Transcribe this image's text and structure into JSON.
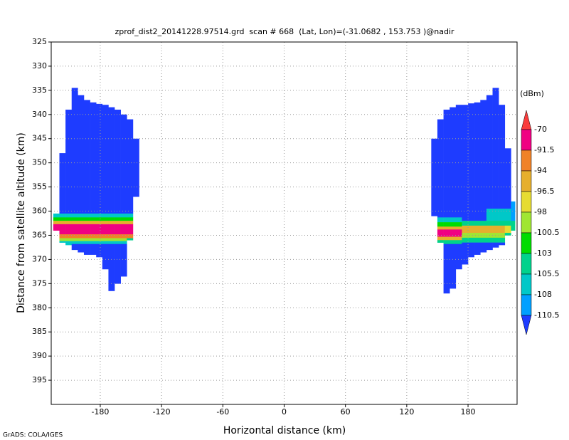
{
  "chart_data": {
    "type": "heatmap",
    "title": "zprof_dist2_20141228.97514.grd  scan # 668  (Lat, Lon)=(-31.0682 , 153.753 )@nadir",
    "x_label": "Horizontal distance (km)",
    "y_label": "Distance from satellite altitude (km)",
    "footer": "GrADS: COLA/IGES",
    "xlim": [
      -228,
      228
    ],
    "xticks": [
      -180,
      -120,
      -60,
      0,
      60,
      120,
      180
    ],
    "ylim": [
      325,
      400
    ],
    "y_reversed": true,
    "yticks": [
      325,
      330,
      335,
      340,
      345,
      350,
      355,
      360,
      365,
      370,
      375,
      380,
      385,
      390,
      395
    ],
    "grid": true,
    "colorbar": {
      "label": "(dBm)",
      "levels": [
        -70,
        -91.5,
        -94,
        -96.5,
        -98,
        -100.5,
        -103,
        -105.5,
        -108,
        -110.5
      ],
      "colors": [
        "#fa3c3c",
        "#f00082",
        "#f08228",
        "#e6af2d",
        "#e6dc32",
        "#a0e632",
        "#00dc00",
        "#00d28c",
        "#00c8c8",
        "#00a0ff",
        "#1e3cff"
      ]
    },
    "columns": [
      {
        "x": [
          -226,
          -220
        ],
        "cells": [
          [
            360.5,
            361.3,
            -107
          ],
          [
            361.3,
            362,
            -102
          ],
          [
            362,
            362.7,
            -95
          ],
          [
            362.7,
            364,
            -80
          ]
        ]
      },
      {
        "x": [
          -220,
          -214
        ],
        "cells": [
          [
            348,
            360.5,
            -112
          ],
          [
            360.5,
            361.3,
            -107
          ],
          [
            361.3,
            362,
            -102
          ],
          [
            362,
            362.7,
            -95
          ],
          [
            362.7,
            364.8,
            -80
          ],
          [
            364.8,
            365.6,
            -93
          ],
          [
            365.6,
            366.2,
            -99
          ],
          [
            366.2,
            366.5,
            -107
          ]
        ]
      },
      {
        "x": [
          -214,
          -208
        ],
        "cells": [
          [
            339,
            360.5,
            -112
          ],
          [
            360.5,
            361.3,
            -107
          ],
          [
            361.3,
            362,
            -102
          ],
          [
            362,
            362.7,
            -95
          ],
          [
            362.7,
            364.8,
            -80
          ],
          [
            364.8,
            365.6,
            -93
          ],
          [
            365.6,
            366.2,
            -99
          ],
          [
            366.2,
            367,
            -107
          ]
        ]
      },
      {
        "x": [
          -208,
          -202
        ],
        "cells": [
          [
            334.5,
            360.5,
            -112
          ],
          [
            360.5,
            361.3,
            -107
          ],
          [
            361.3,
            362,
            -102
          ],
          [
            362,
            362.7,
            -95
          ],
          [
            362.7,
            364.8,
            -80
          ],
          [
            364.8,
            365.6,
            -93
          ],
          [
            365.6,
            366.2,
            -99
          ],
          [
            366.2,
            366.8,
            -107
          ],
          [
            366.8,
            368,
            -112
          ]
        ]
      },
      {
        "x": [
          -202,
          -196
        ],
        "cells": [
          [
            336,
            360.5,
            -112
          ],
          [
            360.5,
            361.3,
            -107
          ],
          [
            361.3,
            362,
            -102
          ],
          [
            362,
            362.7,
            -95
          ],
          [
            362.7,
            364.8,
            -80
          ],
          [
            364.8,
            365.6,
            -93
          ],
          [
            365.6,
            366.2,
            -99
          ],
          [
            366.2,
            366.8,
            -107
          ],
          [
            366.8,
            368.5,
            -112
          ]
        ]
      },
      {
        "x": [
          -196,
          -190
        ],
        "cells": [
          [
            337,
            360.5,
            -112
          ],
          [
            360.5,
            361.3,
            -107
          ],
          [
            361.3,
            362,
            -102
          ],
          [
            362,
            362.7,
            -95
          ],
          [
            362.7,
            364.8,
            -80
          ],
          [
            364.8,
            365.6,
            -93
          ],
          [
            365.6,
            366.2,
            -99
          ],
          [
            366.2,
            366.8,
            -107
          ],
          [
            366.8,
            369,
            -112
          ]
        ]
      },
      {
        "x": [
          -190,
          -184
        ],
        "cells": [
          [
            337.5,
            360.5,
            -112
          ],
          [
            360.5,
            361.3,
            -107
          ],
          [
            361.3,
            362,
            -102
          ],
          [
            362,
            362.7,
            -95
          ],
          [
            362.7,
            364.8,
            -80
          ],
          [
            364.8,
            365.6,
            -93
          ],
          [
            365.6,
            366.2,
            -99
          ],
          [
            366.2,
            366.8,
            -107
          ],
          [
            366.8,
            369,
            -112
          ]
        ]
      },
      {
        "x": [
          -184,
          -178
        ],
        "cells": [
          [
            337.8,
            360.5,
            -112
          ],
          [
            360.5,
            361.3,
            -107
          ],
          [
            361.3,
            362,
            -102
          ],
          [
            362,
            362.7,
            -95
          ],
          [
            362.7,
            364.8,
            -80
          ],
          [
            364.8,
            365.6,
            -93
          ],
          [
            365.6,
            366.2,
            -99
          ],
          [
            366.2,
            366.8,
            -107
          ],
          [
            366.8,
            369.5,
            -112
          ]
        ]
      },
      {
        "x": [
          -178,
          -172
        ],
        "cells": [
          [
            338,
            360.5,
            -112
          ],
          [
            360.5,
            361.3,
            -107
          ],
          [
            361.3,
            362,
            -102
          ],
          [
            362,
            362.7,
            -95
          ],
          [
            362.7,
            364.8,
            -80
          ],
          [
            364.8,
            365.6,
            -93
          ],
          [
            365.6,
            366.2,
            -99
          ],
          [
            366.2,
            366.8,
            -107
          ],
          [
            366.8,
            372,
            -112
          ]
        ]
      },
      {
        "x": [
          -172,
          -166
        ],
        "cells": [
          [
            338.5,
            360.5,
            -112
          ],
          [
            360.5,
            361.3,
            -107
          ],
          [
            361.3,
            362,
            -102
          ],
          [
            362,
            362.7,
            -95
          ],
          [
            362.7,
            364.8,
            -80
          ],
          [
            364.8,
            365.6,
            -93
          ],
          [
            365.6,
            366.2,
            -99
          ],
          [
            366.2,
            366.8,
            -107
          ],
          [
            366.8,
            376.5,
            -112
          ]
        ]
      },
      {
        "x": [
          -166,
          -160
        ],
        "cells": [
          [
            339,
            360.5,
            -112
          ],
          [
            360.5,
            361.3,
            -107
          ],
          [
            361.3,
            362,
            -102
          ],
          [
            362,
            362.7,
            -95
          ],
          [
            362.7,
            364.8,
            -80
          ],
          [
            364.8,
            365.6,
            -93
          ],
          [
            365.6,
            366.2,
            -99
          ],
          [
            366.2,
            366.8,
            -107
          ],
          [
            366.8,
            375,
            -112
          ]
        ]
      },
      {
        "x": [
          -160,
          -154
        ],
        "cells": [
          [
            340,
            360.5,
            -112
          ],
          [
            360.5,
            361.3,
            -107
          ],
          [
            361.3,
            362,
            -102
          ],
          [
            362,
            362.7,
            -95
          ],
          [
            362.7,
            364.8,
            -80
          ],
          [
            364.8,
            365.6,
            -93
          ],
          [
            365.6,
            366.2,
            -99
          ],
          [
            366.2,
            366.8,
            -107
          ],
          [
            366.8,
            373.5,
            -112
          ]
        ]
      },
      {
        "x": [
          -154,
          -148
        ],
        "cells": [
          [
            341,
            360.5,
            -112
          ],
          [
            360.5,
            361.3,
            -107
          ],
          [
            361.3,
            362,
            -102
          ],
          [
            362,
            362.7,
            -95
          ],
          [
            362.7,
            364.8,
            -85
          ],
          [
            364.8,
            365.6,
            -93
          ],
          [
            365.6,
            366,
            -104
          ]
        ]
      },
      {
        "x": [
          -148,
          -142
        ],
        "cells": [
          [
            345,
            357,
            -112
          ]
        ]
      },
      {
        "x": [
          144,
          150
        ],
        "cells": [
          [
            345,
            361,
            -112
          ]
        ]
      },
      {
        "x": [
          150,
          156
        ],
        "cells": [
          [
            341,
            361.3,
            -112
          ],
          [
            361.3,
            362.3,
            -106
          ],
          [
            362.3,
            363.2,
            -101
          ],
          [
            363.2,
            363.8,
            -96
          ],
          [
            363.8,
            365.3,
            -80
          ],
          [
            365.3,
            366,
            -94
          ],
          [
            366,
            366.5,
            -104
          ]
        ]
      },
      {
        "x": [
          156,
          162
        ],
        "cells": [
          [
            339,
            361.3,
            -112
          ],
          [
            361.3,
            362.3,
            -106
          ],
          [
            362.3,
            363.2,
            -101
          ],
          [
            363.2,
            363.8,
            -96
          ],
          [
            363.8,
            365.3,
            -80
          ],
          [
            365.3,
            366,
            -94
          ],
          [
            366,
            366.8,
            -104
          ],
          [
            366.8,
            377,
            -112
          ]
        ]
      },
      {
        "x": [
          162,
          168
        ],
        "cells": [
          [
            338.5,
            361.3,
            -112
          ],
          [
            361.3,
            362.3,
            -106
          ],
          [
            362.3,
            363.2,
            -101
          ],
          [
            363.2,
            363.8,
            -96
          ],
          [
            363.8,
            365.3,
            -80
          ],
          [
            365.3,
            366,
            -94
          ],
          [
            366,
            366.8,
            -104
          ],
          [
            366.8,
            376,
            -112
          ]
        ]
      },
      {
        "x": [
          168,
          174
        ],
        "cells": [
          [
            338,
            361.3,
            -112
          ],
          [
            361.3,
            362.3,
            -106
          ],
          [
            362.3,
            363.2,
            -101
          ],
          [
            363.2,
            363.8,
            -96
          ],
          [
            363.8,
            365.3,
            -80
          ],
          [
            365.3,
            366,
            -94
          ],
          [
            366,
            366.8,
            -104
          ],
          [
            366.8,
            372,
            -112
          ]
        ]
      },
      {
        "x": [
          174,
          180
        ],
        "cells": [
          [
            338,
            362,
            -112
          ],
          [
            362,
            363,
            -103
          ],
          [
            363,
            364.5,
            -96
          ],
          [
            364.5,
            365.5,
            -98.5
          ],
          [
            365.5,
            366.5,
            -104
          ],
          [
            366.5,
            371,
            -112
          ]
        ]
      },
      {
        "x": [
          180,
          186
        ],
        "cells": [
          [
            337.7,
            362,
            -112
          ],
          [
            362,
            363,
            -103
          ],
          [
            363,
            364.5,
            -96
          ],
          [
            364.5,
            365.5,
            -98.5
          ],
          [
            365.5,
            366.5,
            -104
          ],
          [
            366.5,
            369.5,
            -112
          ]
        ]
      },
      {
        "x": [
          186,
          192
        ],
        "cells": [
          [
            337.5,
            362,
            -112
          ],
          [
            362,
            363,
            -103
          ],
          [
            363,
            364.5,
            -96
          ],
          [
            364.5,
            365.5,
            -98.5
          ],
          [
            365.5,
            366.5,
            -104
          ],
          [
            366.5,
            369,
            -112
          ]
        ]
      },
      {
        "x": [
          192,
          198
        ],
        "cells": [
          [
            337,
            362,
            -112
          ],
          [
            362,
            363,
            -103
          ],
          [
            363,
            364.5,
            -96
          ],
          [
            364.5,
            365.5,
            -98.5
          ],
          [
            365.5,
            366.5,
            -104
          ],
          [
            366.5,
            368.5,
            -112
          ]
        ]
      },
      {
        "x": [
          198,
          204
        ],
        "cells": [
          [
            336,
            359.5,
            -112
          ],
          [
            359.5,
            362,
            -107
          ],
          [
            362,
            363,
            -103
          ],
          [
            363,
            364.5,
            -96
          ],
          [
            364.5,
            365.5,
            -98.5
          ],
          [
            365.5,
            366.5,
            -104
          ],
          [
            366.5,
            368,
            -112
          ]
        ]
      },
      {
        "x": [
          204,
          210
        ],
        "cells": [
          [
            334.5,
            359.5,
            -112
          ],
          [
            359.5,
            362,
            -107
          ],
          [
            362,
            363,
            -103
          ],
          [
            363,
            364.5,
            -96
          ],
          [
            364.5,
            365.5,
            -98.5
          ],
          [
            365.5,
            366.5,
            -104
          ],
          [
            366.5,
            367.5,
            -112
          ]
        ]
      },
      {
        "x": [
          210,
          216
        ],
        "cells": [
          [
            338,
            359.5,
            -112
          ],
          [
            359.5,
            362,
            -107
          ],
          [
            362,
            363,
            -103
          ],
          [
            363,
            364.5,
            -96
          ],
          [
            364.5,
            365.5,
            -98.5
          ],
          [
            365.5,
            366.5,
            -104
          ],
          [
            366.5,
            367,
            -112
          ]
        ]
      },
      {
        "x": [
          216,
          222
        ],
        "cells": [
          [
            347,
            359.5,
            -112
          ],
          [
            359.5,
            362,
            -107
          ],
          [
            362,
            363,
            -103
          ],
          [
            363,
            364.5,
            -97
          ],
          [
            364.5,
            365,
            -104
          ]
        ]
      },
      {
        "x": [
          222,
          226
        ],
        "cells": [
          [
            358,
            362,
            -108
          ],
          [
            362,
            364,
            -104
          ]
        ]
      }
    ]
  }
}
